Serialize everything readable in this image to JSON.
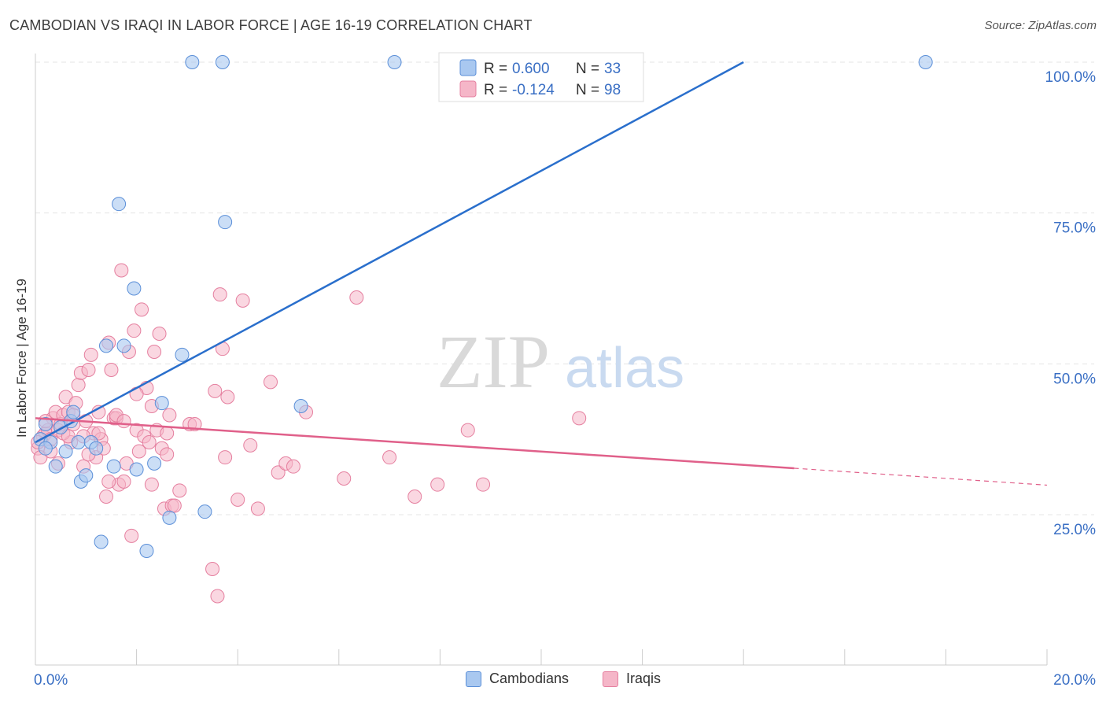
{
  "title": "CAMBODIAN VS IRAQI IN LABOR FORCE | AGE 16-19 CORRELATION CHART",
  "source": "Source: ZipAtlas.com",
  "watermark": {
    "zip": "ZIP",
    "atlas": "atlas"
  },
  "colors": {
    "blue_fill": "#a9c8f0",
    "blue_stroke": "#5b8fd8",
    "blue_line": "#2a6fcc",
    "pink_fill": "#f5b6c8",
    "pink_stroke": "#e57f9f",
    "pink_line": "#e0608a",
    "tick_text": "#3a6fc4",
    "grid": "#e4e4e4"
  },
  "legend": {
    "cambodians": {
      "r_label": "R =",
      "r_value": "0.600",
      "n_label": "N =",
      "n_value": "33"
    },
    "iraqis": {
      "r_label": "R =",
      "r_value": "-0.124",
      "n_label": "N =",
      "n_value": "98"
    }
  },
  "bottom_legend": [
    "Cambodians",
    "Iraqis"
  ],
  "chart_data": {
    "type": "scatter",
    "title": "CAMBODIAN VS IRAQI IN LABOR FORCE | AGE 16-19 CORRELATION CHART",
    "xlabel": "",
    "ylabel": "In Labor Force | Age 16-19",
    "xlim": [
      0,
      20
    ],
    "ylim": [
      0,
      105
    ],
    "x_tick_labels": [
      "0.0%",
      "20.0%"
    ],
    "y_ticks": [
      25,
      50,
      75,
      100
    ],
    "y_tick_labels": [
      "25.0%",
      "50.0%",
      "75.0%",
      "100.0%"
    ],
    "grid": true,
    "series": [
      {
        "name": "Cambodians",
        "R": 0.6,
        "N": 33,
        "trendline": {
          "x": [
            0,
            14.0
          ],
          "y": [
            37.0,
            100.0
          ]
        },
        "points": [
          [
            0.1,
            37.5
          ],
          [
            0.2,
            40
          ],
          [
            0.3,
            37
          ],
          [
            0.4,
            33
          ],
          [
            0.5,
            39.5
          ],
          [
            0.6,
            35.5
          ],
          [
            0.7,
            40.5
          ],
          [
            0.75,
            42
          ],
          [
            0.85,
            37
          ],
          [
            0.9,
            30.5
          ],
          [
            1.0,
            31.5
          ],
          [
            1.1,
            37
          ],
          [
            1.2,
            36
          ],
          [
            1.3,
            20.5
          ],
          [
            1.4,
            53
          ],
          [
            1.55,
            33
          ],
          [
            1.65,
            76.5
          ],
          [
            1.75,
            53
          ],
          [
            1.95,
            62.5
          ],
          [
            2.0,
            32.5
          ],
          [
            2.2,
            19
          ],
          [
            2.35,
            33.5
          ],
          [
            2.5,
            43.5
          ],
          [
            2.65,
            24.5
          ],
          [
            2.9,
            51.5
          ],
          [
            3.1,
            100
          ],
          [
            3.35,
            25.5
          ],
          [
            3.7,
            100
          ],
          [
            3.75,
            73.5
          ],
          [
            5.25,
            43
          ],
          [
            7.1,
            100
          ],
          [
            17.6,
            100
          ],
          [
            0.2,
            36
          ]
        ]
      },
      {
        "name": "Iraqis",
        "R": -0.124,
        "N": 98,
        "trendline": {
          "x": [
            0,
            15.0
          ],
          "y": [
            41.0,
            32.7
          ]
        },
        "trendline_dashed": {
          "x": [
            15.0,
            20.0
          ],
          "y": [
            32.7,
            29.9
          ]
        },
        "points": [
          [
            0.05,
            36
          ],
          [
            0.1,
            34.5
          ],
          [
            0.15,
            38
          ],
          [
            0.2,
            38.5
          ],
          [
            0.25,
            39
          ],
          [
            0.3,
            37.5
          ],
          [
            0.35,
            41
          ],
          [
            0.4,
            42
          ],
          [
            0.45,
            39
          ],
          [
            0.5,
            40
          ],
          [
            0.55,
            41.5
          ],
          [
            0.6,
            44.5
          ],
          [
            0.65,
            42
          ],
          [
            0.7,
            37
          ],
          [
            0.75,
            40
          ],
          [
            0.8,
            43.5
          ],
          [
            0.85,
            46.5
          ],
          [
            0.9,
            48.5
          ],
          [
            0.95,
            33
          ],
          [
            1.0,
            40.5
          ],
          [
            1.05,
            49
          ],
          [
            1.1,
            51.5
          ],
          [
            1.15,
            38.5
          ],
          [
            1.2,
            34.5
          ],
          [
            1.25,
            42
          ],
          [
            1.3,
            37.5
          ],
          [
            1.35,
            36
          ],
          [
            1.4,
            28
          ],
          [
            1.45,
            53.5
          ],
          [
            1.5,
            49
          ],
          [
            1.55,
            41
          ],
          [
            1.6,
            41
          ],
          [
            1.65,
            30
          ],
          [
            1.7,
            65.5
          ],
          [
            1.75,
            30.5
          ],
          [
            1.8,
            33.5
          ],
          [
            1.85,
            52
          ],
          [
            1.9,
            21.5
          ],
          [
            1.95,
            55.5
          ],
          [
            2.0,
            39
          ],
          [
            2.05,
            35.5
          ],
          [
            2.1,
            59
          ],
          [
            2.15,
            38
          ],
          [
            2.2,
            46
          ],
          [
            2.25,
            37
          ],
          [
            2.3,
            43
          ],
          [
            2.35,
            52
          ],
          [
            2.4,
            39
          ],
          [
            2.45,
            55
          ],
          [
            2.5,
            36
          ],
          [
            2.55,
            26
          ],
          [
            2.6,
            38.5
          ],
          [
            2.65,
            41.5
          ],
          [
            2.7,
            26.5
          ],
          [
            2.75,
            26.5
          ],
          [
            2.85,
            29
          ],
          [
            3.05,
            40
          ],
          [
            3.15,
            40
          ],
          [
            3.5,
            16
          ],
          [
            3.55,
            45.5
          ],
          [
            3.6,
            11.5
          ],
          [
            3.65,
            61.5
          ],
          [
            3.7,
            52.5
          ],
          [
            3.75,
            34.5
          ],
          [
            3.8,
            44.5
          ],
          [
            4.0,
            27.5
          ],
          [
            4.1,
            60.5
          ],
          [
            4.25,
            36.5
          ],
          [
            4.4,
            26
          ],
          [
            4.65,
            47
          ],
          [
            4.8,
            32
          ],
          [
            4.95,
            33.5
          ],
          [
            5.1,
            33
          ],
          [
            5.35,
            42
          ],
          [
            6.1,
            31
          ],
          [
            6.35,
            61
          ],
          [
            7.0,
            34.5
          ],
          [
            7.5,
            28
          ],
          [
            7.95,
            30
          ],
          [
            8.55,
            39
          ],
          [
            8.85,
            30
          ],
          [
            10.75,
            41
          ],
          [
            0.3,
            35.5
          ],
          [
            0.45,
            33.5
          ],
          [
            0.55,
            38.5
          ],
          [
            0.65,
            38
          ],
          [
            0.75,
            41.5
          ],
          [
            0.95,
            38
          ],
          [
            1.05,
            35
          ],
          [
            1.25,
            38.5
          ],
          [
            1.45,
            30.5
          ],
          [
            1.6,
            41.5
          ],
          [
            1.75,
            40.5
          ],
          [
            2.0,
            45
          ],
          [
            2.3,
            30
          ],
          [
            2.6,
            35
          ],
          [
            0.05,
            37
          ],
          [
            0.2,
            40.5
          ]
        ]
      }
    ]
  }
}
